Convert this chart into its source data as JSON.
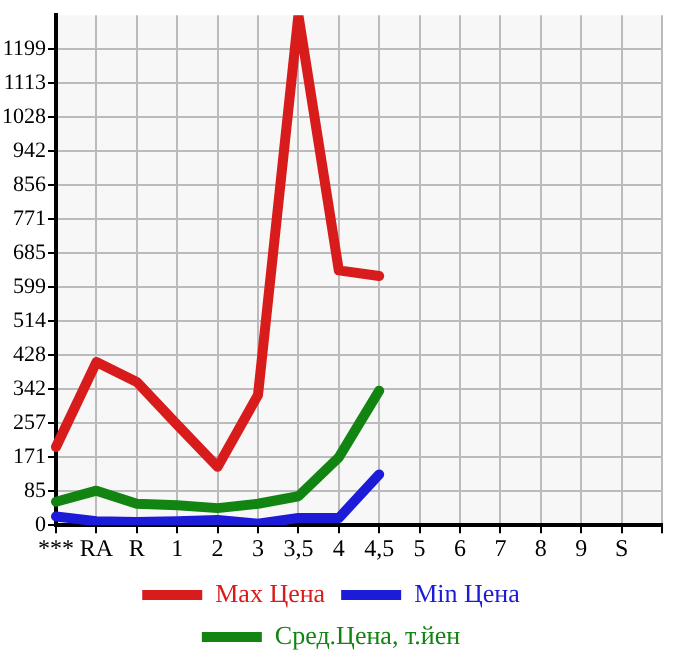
{
  "chart_data": {
    "type": "line",
    "categories": [
      "***",
      "RA",
      "R",
      "1",
      "2",
      "3",
      "3,5",
      "4",
      "4,5",
      "5",
      "6",
      "7",
      "8",
      "9",
      "S",
      null
    ],
    "series": [
      {
        "name": "Max Цена",
        "color": "#d81c1c",
        "values": [
          197,
          411,
          361,
          253,
          147,
          328,
          1285,
          642,
          628,
          null,
          null,
          null,
          null,
          null,
          null,
          null
        ]
      },
      {
        "name": "Min Цена",
        "color": "#1c1cd8",
        "values": [
          22,
          10,
          8,
          10,
          13,
          4,
          18,
          18,
          128,
          null,
          null,
          null,
          null,
          null,
          null,
          null
        ]
      },
      {
        "name": "Сред.Цена, т.йен",
        "color": "#128412",
        "values": [
          59,
          87,
          54,
          50,
          43,
          54,
          73,
          171,
          339,
          null,
          null,
          null,
          null,
          null,
          null,
          null
        ]
      }
    ],
    "ylim": [
      0,
      1285
    ],
    "yticks": [
      0,
      85,
      171,
      257,
      342,
      428,
      514,
      599,
      685,
      771,
      856,
      942,
      1028,
      1113,
      1199
    ],
    "grid": true,
    "legend": "bottom",
    "marker": "none",
    "line_style": "solid"
  }
}
